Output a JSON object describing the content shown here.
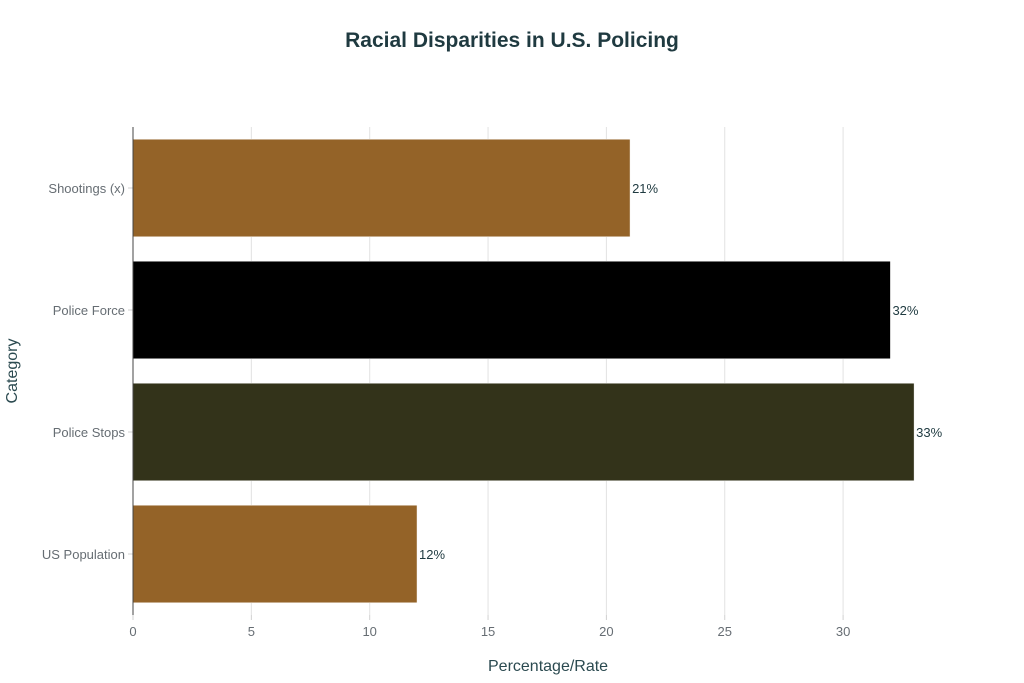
{
  "chart_data": {
    "type": "bar",
    "orientation": "horizontal",
    "title": "Racial Disparities in U.S. Policing",
    "xlabel": "Percentage/Rate",
    "ylabel": "Category",
    "categories": [
      "Shootings (x)",
      "Police Force",
      "Police Stops",
      "US Population"
    ],
    "values": [
      21,
      32,
      33,
      12
    ],
    "data_labels": [
      "21%",
      "32%",
      "33%",
      "12%"
    ],
    "colors": [
      "#946328",
      "#000000",
      "#33331a",
      "#946328"
    ],
    "xlim": [
      0,
      35
    ],
    "xticks": [
      0,
      5,
      10,
      15,
      20,
      25,
      30
    ],
    "grid": true,
    "legend": "none"
  }
}
